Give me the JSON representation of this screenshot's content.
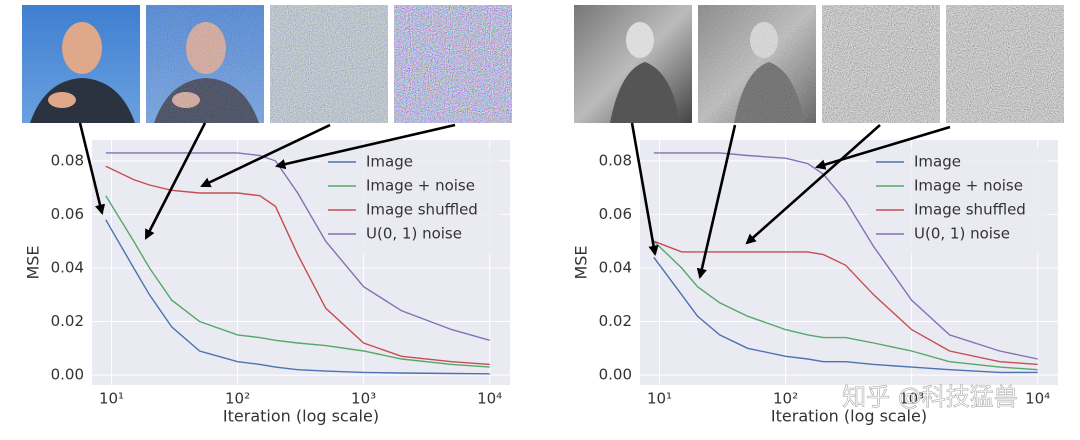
{
  "chart_data": [
    {
      "type": "line",
      "xlabel": "Iteration (log scale)",
      "ylabel": "MSE",
      "xscale": "log",
      "grid": true,
      "legend": "upper right",
      "xlim": [
        7,
        14500
      ],
      "ylim": [
        -0.0037,
        0.0878
      ],
      "xticks": [
        {
          "value": 10,
          "label": "10¹"
        },
        {
          "value": 100,
          "label": "10²"
        },
        {
          "value": 1000,
          "label": "10³"
        },
        {
          "value": 10000,
          "label": "10⁴"
        }
      ],
      "yticks": [
        {
          "value": 0,
          "label": "0.00"
        },
        0.02,
        0.04,
        0.06,
        0.08
      ],
      "x": [
        9,
        15,
        20,
        30,
        50,
        100,
        150,
        200,
        300,
        500,
        1000,
        2000,
        5000,
        10000
      ],
      "series": [
        {
          "name": "Image",
          "color": "#4c72b0",
          "values": [
            0.058,
            0.04,
            0.03,
            0.018,
            0.009,
            0.005,
            0.004,
            0.003,
            0.002,
            0.0015,
            0.001,
            0.0008,
            0.0006,
            0.0005
          ]
        },
        {
          "name": "Image + noise",
          "color": "#55a868",
          "values": [
            0.067,
            0.05,
            0.04,
            0.028,
            0.02,
            0.015,
            0.014,
            0.013,
            0.012,
            0.011,
            0.009,
            0.006,
            0.004,
            0.003
          ]
        },
        {
          "name": "Image shuffled",
          "color": "#c44e52",
          "values": [
            0.078,
            0.073,
            0.071,
            0.069,
            0.068,
            0.068,
            0.067,
            0.063,
            0.045,
            0.025,
            0.012,
            0.007,
            0.005,
            0.004
          ]
        },
        {
          "name": "U(0, 1) noise",
          "color": "#8172b2",
          "values": [
            0.083,
            0.083,
            0.083,
            0.083,
            0.083,
            0.083,
            0.082,
            0.08,
            0.068,
            0.05,
            0.033,
            0.024,
            0.017,
            0.013
          ]
        }
      ]
    },
    {
      "type": "line",
      "xlabel": "Iteration (log scale)",
      "ylabel": "MSE",
      "xscale": "log",
      "grid": true,
      "legend": "upper right",
      "xlim": [
        7,
        14500
      ],
      "ylim": [
        -0.0037,
        0.0878
      ],
      "xticks": [
        {
          "value": 10,
          "label": "10¹"
        },
        {
          "value": 100,
          "label": "10²"
        },
        {
          "value": 1000,
          "label": "10³"
        },
        {
          "value": 10000,
          "label": "10⁴"
        }
      ],
      "yticks": [
        {
          "value": 0,
          "label": "0.00"
        },
        0.02,
        0.04,
        0.06,
        0.08
      ],
      "x": [
        9,
        15,
        20,
        30,
        50,
        100,
        150,
        200,
        300,
        500,
        1000,
        2000,
        5000,
        10000
      ],
      "series": [
        {
          "name": "Image",
          "color": "#4c72b0",
          "values": [
            0.044,
            0.03,
            0.022,
            0.015,
            0.01,
            0.007,
            0.006,
            0.005,
            0.005,
            0.004,
            0.003,
            0.002,
            0.001,
            0.001
          ]
        },
        {
          "name": "Image + noise",
          "color": "#55a868",
          "values": [
            0.05,
            0.04,
            0.033,
            0.027,
            0.022,
            0.017,
            0.015,
            0.014,
            0.014,
            0.012,
            0.009,
            0.005,
            0.003,
            0.002
          ]
        },
        {
          "name": "Image shuffled",
          "color": "#c44e52",
          "values": [
            0.05,
            0.046,
            0.046,
            0.046,
            0.046,
            0.046,
            0.046,
            0.045,
            0.041,
            0.03,
            0.017,
            0.009,
            0.005,
            0.004
          ]
        },
        {
          "name": "U(0, 1) noise",
          "color": "#8172b2",
          "values": [
            0.083,
            0.083,
            0.083,
            0.083,
            0.082,
            0.081,
            0.079,
            0.075,
            0.065,
            0.048,
            0.028,
            0.015,
            0.009,
            0.006
          ]
        }
      ]
    }
  ],
  "watermark": "知乎 @科技猛兽"
}
